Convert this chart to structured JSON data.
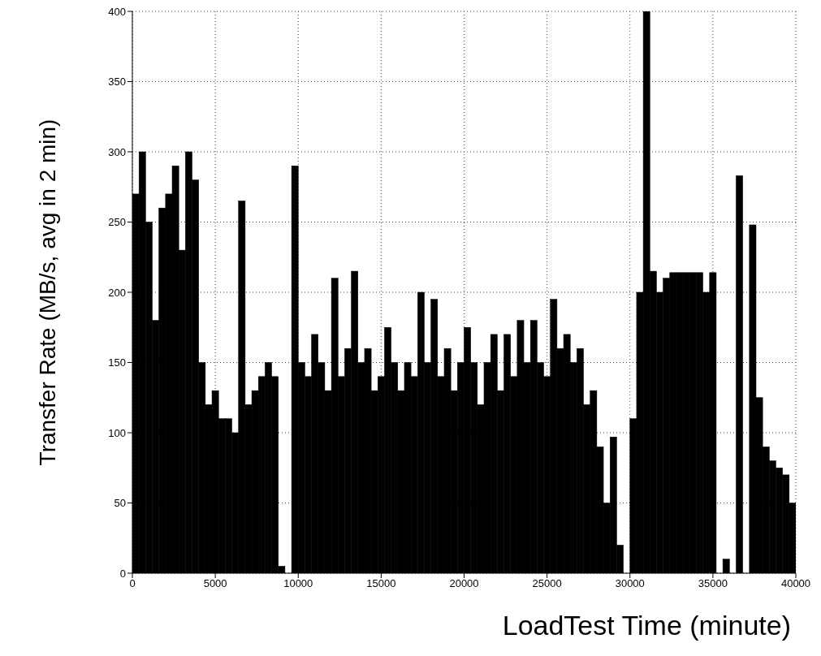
{
  "chart_data": {
    "type": "histogram",
    "xlabel": "LoadTest Time (minute)",
    "ylabel": "Transfer Rate (MB/s, avg in 2 min)",
    "color": "#000000",
    "bins": [
      0,
      400,
      800,
      1200,
      1600,
      2000,
      2400,
      2800,
      3200,
      3600,
      4000,
      4400,
      4800,
      5200,
      5600,
      6000,
      6400,
      6800,
      7200,
      7600,
      8000,
      8400,
      8800,
      9200,
      9600,
      10000,
      10400,
      10800,
      11200,
      11600,
      12000,
      12400,
      12800,
      13200,
      13600,
      14000,
      14400,
      14800,
      15200,
      15600,
      16000,
      16400,
      16800,
      17200,
      17600,
      18000,
      18400,
      18800,
      19200,
      19600,
      20000,
      20400,
      20800,
      21200,
      21600,
      22000,
      22400,
      22800,
      23200,
      23600,
      24000,
      24400,
      24800,
      25200,
      25600,
      26000,
      26400,
      26800,
      27200,
      27600,
      28000,
      28400,
      28800,
      29200,
      29600,
      30000,
      30400,
      30800,
      31200,
      31600,
      32000,
      32400,
      32800,
      33200,
      33600,
      34000,
      34400,
      34800,
      35200,
      35600,
      36000,
      36400,
      36800,
      37200,
      37600,
      38000,
      38400,
      38800,
      39200,
      39600,
      40000
    ],
    "values": [
      270,
      300,
      250,
      180,
      260,
      270,
      290,
      230,
      300,
      280,
      150,
      120,
      130,
      110,
      110,
      100,
      265,
      120,
      130,
      140,
      150,
      140,
      5,
      0,
      290,
      150,
      140,
      170,
      150,
      130,
      210,
      140,
      160,
      215,
      150,
      160,
      130,
      140,
      175,
      150,
      130,
      150,
      140,
      200,
      150,
      195,
      140,
      160,
      130,
      150,
      175,
      150,
      120,
      150,
      170,
      130,
      170,
      140,
      180,
      150,
      180,
      150,
      140,
      195,
      160,
      170,
      150,
      160,
      120,
      130,
      90,
      50,
      97,
      20,
      0,
      110,
      200,
      400,
      215,
      200,
      210,
      214,
      214,
      214,
      214,
      214,
      200,
      214,
      0,
      10,
      0,
      283,
      0,
      248,
      125,
      90,
      80,
      75,
      70,
      50
    ],
    "xlim": [
      0,
      40000
    ],
    "xticks": [
      0,
      5000,
      10000,
      15000,
      20000,
      25000,
      30000,
      35000,
      40000
    ],
    "ylim": [
      0,
      400
    ],
    "yticks": [
      0,
      50,
      100,
      150,
      200,
      250,
      300,
      350,
      400
    ],
    "grid": true,
    "line_style": "dotted"
  }
}
